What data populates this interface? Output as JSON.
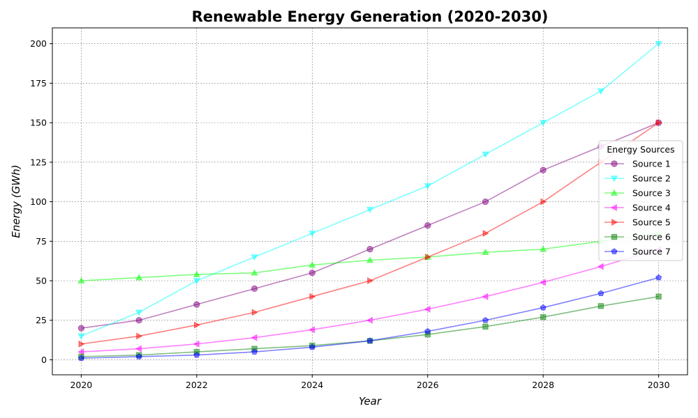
{
  "chart_data": {
    "type": "line",
    "title": "Renewable Energy Generation (2020-2030)",
    "xlabel": "Year",
    "ylabel": "Energy (GWh)",
    "x": [
      2020,
      2021,
      2022,
      2023,
      2024,
      2025,
      2026,
      2027,
      2028,
      2029,
      2030
    ],
    "xlim": [
      2019.5,
      2030.5
    ],
    "ylim": [
      -9.5,
      210
    ],
    "xticks": [
      2020,
      2022,
      2024,
      2026,
      2028,
      2030
    ],
    "yticks": [
      0,
      25,
      50,
      75,
      100,
      125,
      150,
      175,
      200
    ],
    "grid": true,
    "legend": {
      "title": "Energy Sources",
      "placement": "center-right"
    },
    "series": [
      {
        "name": "Source 1",
        "color": "#800080",
        "marker": "circle",
        "values": [
          20,
          25,
          35,
          45,
          55,
          70,
          85,
          100,
          120,
          135,
          150
        ]
      },
      {
        "name": "Source 2",
        "color": "#00ffff",
        "marker": "triangle-down",
        "values": [
          15,
          30,
          50,
          65,
          80,
          95,
          110,
          130,
          150,
          170,
          200
        ]
      },
      {
        "name": "Source 3",
        "color": "#00ff00",
        "marker": "triangle-up",
        "values": [
          50,
          52,
          54,
          55,
          60,
          63,
          65,
          68,
          70,
          75,
          80
        ]
      },
      {
        "name": "Source 4",
        "color": "#ff00ff",
        "marker": "triangle-left",
        "values": [
          5,
          7,
          10,
          14,
          19,
          25,
          32,
          40,
          49,
          59,
          70
        ]
      },
      {
        "name": "Source 5",
        "color": "#ff0000",
        "marker": "triangle-right",
        "values": [
          10,
          15,
          22,
          30,
          40,
          50,
          65,
          80,
          100,
          125,
          150
        ]
      },
      {
        "name": "Source 6",
        "color": "#008000",
        "marker": "square",
        "values": [
          2,
          3,
          5,
          7,
          9,
          12,
          16,
          21,
          27,
          34,
          40
        ]
      },
      {
        "name": "Source 7",
        "color": "#0000ff",
        "marker": "pentagon",
        "values": [
          1,
          2,
          3,
          5,
          8,
          12,
          18,
          25,
          33,
          42,
          52
        ]
      }
    ]
  }
}
